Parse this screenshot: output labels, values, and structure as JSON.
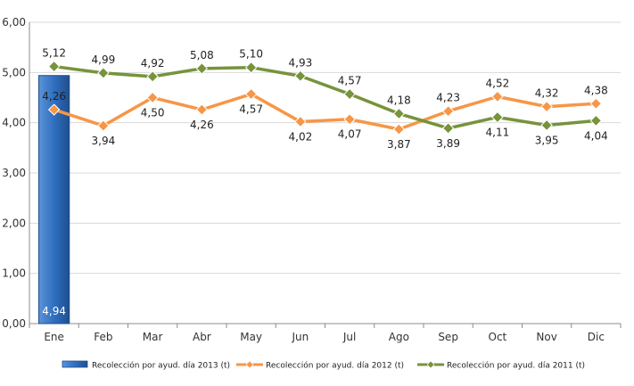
{
  "chart_data": {
    "type": "bar",
    "categories": [
      "Ene",
      "Feb",
      "Mar",
      "Abr",
      "May",
      "Jun",
      "Jul",
      "Ago",
      "Sep",
      "Oct",
      "Nov",
      "Dic"
    ],
    "ylim": [
      0,
      6
    ],
    "yticks": [
      "0,00",
      "1,00",
      "2,00",
      "3,00",
      "4,00",
      "5,00",
      "6,00"
    ],
    "grid": true,
    "legend_position": "bottom",
    "series": [
      {
        "name": "Recolección por ayud. día 2013 (t)",
        "type": "bar",
        "color": "#3a78c6",
        "values": [
          4.94,
          null,
          null,
          null,
          null,
          null,
          null,
          null,
          null,
          null,
          null,
          null
        ],
        "labels": [
          "4,94",
          "",
          "",
          "",
          "",
          "",
          "",
          "",
          "",
          "",
          "",
          ""
        ]
      },
      {
        "name": "Recolección por ayud. día 2012 (t)",
        "type": "line",
        "color": "#f79646",
        "values": [
          4.26,
          3.94,
          4.5,
          4.26,
          4.57,
          4.02,
          4.07,
          3.87,
          4.23,
          4.52,
          4.32,
          4.38
        ],
        "labels": [
          "4,26",
          "3,94",
          "4,50",
          "4,26",
          "4,57",
          "4,02",
          "4,07",
          "3,87",
          "4,23",
          "4,52",
          "4,32",
          "4,38"
        ]
      },
      {
        "name": "Recolección por ayud. día 2011 (t)",
        "type": "line",
        "color": "#77933c",
        "values": [
          5.12,
          4.99,
          4.92,
          5.08,
          5.1,
          4.93,
          4.57,
          4.18,
          3.89,
          4.11,
          3.95,
          4.04
        ],
        "labels": [
          "5,12",
          "4,99",
          "4,92",
          "5,08",
          "5,10",
          "4,93",
          "4,57",
          "4,18",
          "3,89",
          "4,11",
          "3,95",
          "4,04"
        ]
      }
    ]
  }
}
